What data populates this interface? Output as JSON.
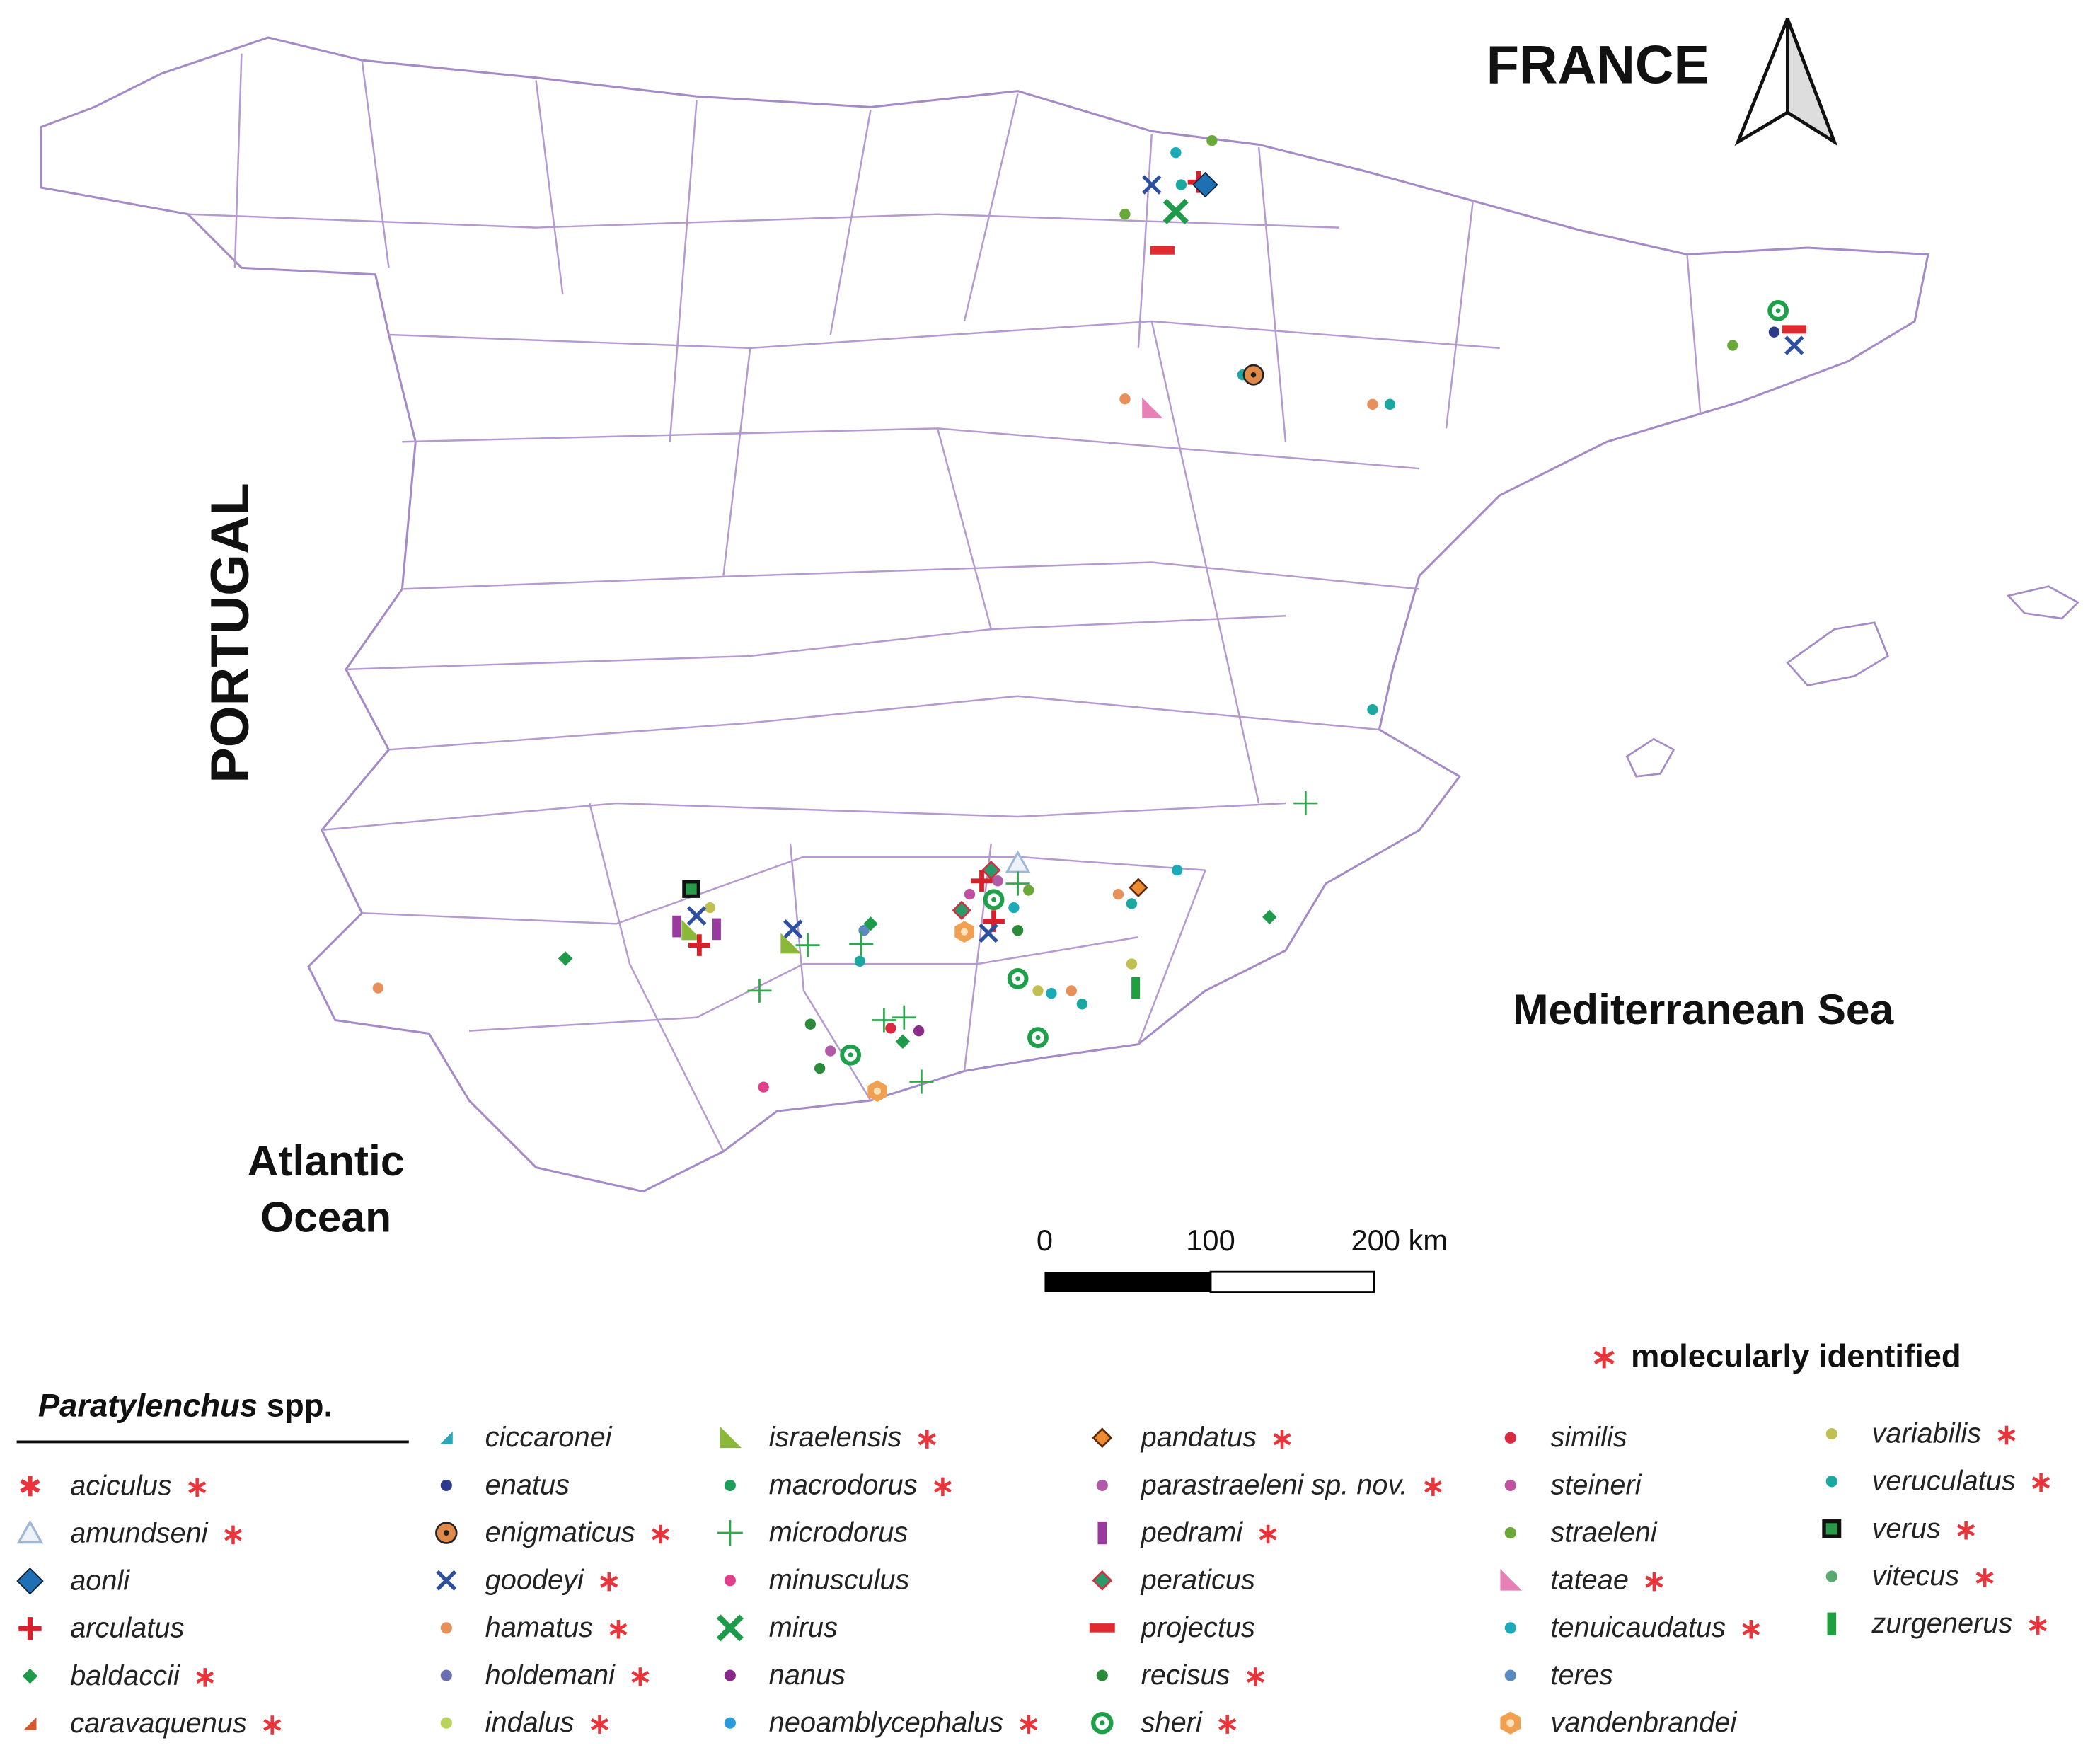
{
  "map": {
    "country_labels": {
      "france": "FRANCE",
      "portugal": "PORTUGAL"
    },
    "sea_label": "Mediterranean Sea",
    "ocean_label": [
      "Atlantic",
      "Ocean"
    ],
    "scale_bar": [
      "0",
      "100",
      "200 km"
    ]
  },
  "molecular_note": "molecularly identified",
  "legend": {
    "title": "Paratylenchus",
    "title_suffix": "spp.",
    "items": [
      {
        "name": "aciculus",
        "marker": "star",
        "color": "#e8343a",
        "molecular": true
      },
      {
        "name": "amundseni",
        "marker": "triangle-open",
        "color": "#9fb8d8",
        "molecular": true
      },
      {
        "name": "aonli",
        "marker": "diamond",
        "color": "#1f6fb4",
        "molecular": false
      },
      {
        "name": "arculatus",
        "marker": "cross",
        "color": "#d8202a",
        "molecular": false
      },
      {
        "name": "baldaccii",
        "marker": "diamond-small",
        "color": "#1e9a4a",
        "molecular": true
      },
      {
        "name": "caravaquenus",
        "marker": "wedge",
        "color": "#d9552b",
        "molecular": true
      },
      {
        "name": "ciccaronei",
        "marker": "wedge",
        "color": "#2aa7b6",
        "molecular": false
      },
      {
        "name": "enatus",
        "marker": "dot",
        "color": "#2d3a8c",
        "molecular": false
      },
      {
        "name": "enigmaticus",
        "marker": "target",
        "color": "#e08a4a",
        "molecular": true
      },
      {
        "name": "goodeyi",
        "marker": "x",
        "color": "#2c4fa0",
        "molecular": true
      },
      {
        "name": "hamatus",
        "marker": "dot",
        "color": "#e8905a",
        "molecular": true
      },
      {
        "name": "holdemani",
        "marker": "dot",
        "color": "#6b6fb0",
        "molecular": true
      },
      {
        "name": "indalus",
        "marker": "dot",
        "color": "#b9d45a",
        "molecular": true
      },
      {
        "name": "israelensis",
        "marker": "triangle-right",
        "color": "#8cb83a",
        "molecular": true
      },
      {
        "name": "macrodorus",
        "marker": "dot",
        "color": "#1e9e5a",
        "molecular": true
      },
      {
        "name": "microdorus",
        "marker": "plus",
        "color": "#2ea84a",
        "molecular": false
      },
      {
        "name": "minusculus",
        "marker": "dot",
        "color": "#e0408a",
        "molecular": false
      },
      {
        "name": "mirus",
        "marker": "x-big",
        "color": "#1f9a4a",
        "molecular": false
      },
      {
        "name": "nanus",
        "marker": "dot",
        "color": "#8a2a8a",
        "molecular": false
      },
      {
        "name": "neoamblycephalus",
        "marker": "dot",
        "color": "#2a9ad8",
        "molecular": true
      },
      {
        "name": "pandatus",
        "marker": "diamond-outline",
        "color": "#f08a30",
        "molecular": true
      },
      {
        "name": "parastraeleni sp. nov.",
        "marker": "dot",
        "color": "#b05aa8",
        "molecular": true
      },
      {
        "name": "pedrami",
        "marker": "bar-v",
        "color": "#9a3aa0",
        "molecular": true
      },
      {
        "name": "peraticus",
        "marker": "diamond-red",
        "color": "#2a9a6a",
        "molecular": false
      },
      {
        "name": "projectus",
        "marker": "bar-h",
        "color": "#e02a30",
        "molecular": false
      },
      {
        "name": "recisus",
        "marker": "dot",
        "color": "#2a8a3a",
        "molecular": true
      },
      {
        "name": "sheri",
        "marker": "ring",
        "color": "#1ea04a",
        "molecular": true
      },
      {
        "name": "similis",
        "marker": "dot",
        "color": "#d82a40",
        "molecular": false
      },
      {
        "name": "steineri",
        "marker": "dot",
        "color": "#c050a0",
        "molecular": false
      },
      {
        "name": "straeleni",
        "marker": "dot",
        "color": "#6aa83a",
        "molecular": false
      },
      {
        "name": "tateae",
        "marker": "triangle-right",
        "color": "#e880b8",
        "molecular": true
      },
      {
        "name": "tenuicaudatus",
        "marker": "dot",
        "color": "#1aaab8",
        "molecular": true
      },
      {
        "name": "teres",
        "marker": "dot",
        "color": "#5a8ac0",
        "molecular": false
      },
      {
        "name": "vandenbrandei",
        "marker": "hexagon",
        "color": "#f0a050",
        "molecular": false
      },
      {
        "name": "variabilis",
        "marker": "dot",
        "color": "#c0c050",
        "molecular": true
      },
      {
        "name": "veruculatus",
        "marker": "dot",
        "color": "#1aa8a0",
        "molecular": true
      },
      {
        "name": "verus",
        "marker": "square-open",
        "color": "#2a9a4a",
        "molecular": true
      },
      {
        "name": "vitecus",
        "marker": "dot",
        "color": "#5aaa70",
        "molecular": true
      },
      {
        "name": "zurgenerus",
        "marker": "bar-v",
        "color": "#1ea040",
        "molecular": true
      }
    ]
  }
}
